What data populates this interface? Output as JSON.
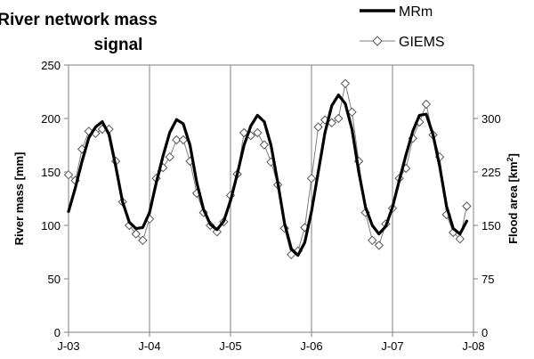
{
  "chart_data": {
    "type": "line",
    "title": "River network mass signal",
    "title_lines": [
      "River network mass",
      "signal"
    ],
    "xlabel": "",
    "ylabel": "River mass [mm]",
    "y2label": "Flood area [km",
    "y2label_sup": "2",
    "y2label_end": "]",
    "ylim": [
      0,
      250
    ],
    "y2lim": [
      0,
      375
    ],
    "xlim": [
      0,
      60
    ],
    "yticks": [
      0,
      50,
      100,
      150,
      200,
      250
    ],
    "y2ticks": [
      0,
      75,
      150,
      225,
      300
    ],
    "xticks": [
      {
        "x": 0,
        "label": "J-03"
      },
      {
        "x": 12,
        "label": "J-04"
      },
      {
        "x": 24,
        "label": "J-05"
      },
      {
        "x": 36,
        "label": "J-06"
      },
      {
        "x": 48,
        "label": "J-07"
      },
      {
        "x": 60,
        "label": "J-08"
      }
    ],
    "grid": {
      "vertical": true,
      "horizontal": false
    },
    "legend": "top-right",
    "series": [
      {
        "name": "MRm",
        "axis": "left",
        "color": "#000000",
        "style": "thick-line",
        "x": [
          0,
          1,
          2,
          3,
          4,
          5,
          6,
          7,
          8,
          9,
          10,
          11,
          12,
          13,
          14,
          15,
          16,
          17,
          18,
          19,
          20,
          21,
          22,
          23,
          24,
          25,
          26,
          27,
          28,
          29,
          30,
          31,
          32,
          33,
          34,
          35,
          36,
          37,
          38,
          39,
          40,
          41,
          42,
          43,
          44,
          45,
          46,
          47,
          48,
          49,
          50,
          51,
          52,
          53,
          54,
          55,
          56,
          57,
          58,
          59
        ],
        "values": [
          113,
          135,
          160,
          182,
          192,
          197,
          185,
          155,
          122,
          103,
          97,
          98,
          112,
          140,
          165,
          187,
          199,
          195,
          175,
          140,
          115,
          101,
          96,
          104,
          123,
          148,
          175,
          193,
          203,
          197,
          175,
          140,
          102,
          78,
          72,
          84,
          113,
          150,
          187,
          212,
          222,
          214,
          190,
          150,
          117,
          100,
          92,
          99,
          117,
          142,
          166,
          188,
          203,
          204,
          185,
          155,
          118,
          97,
          92,
          104
        ]
      },
      {
        "name": "GIEMS",
        "axis": "right",
        "color": "#7f7f7f",
        "style": "thin-line-diamond",
        "x": [
          0,
          1,
          2,
          3,
          4,
          5,
          6,
          7,
          8,
          9,
          10,
          11,
          12,
          13,
          14,
          15,
          16,
          17,
          18,
          19,
          20,
          21,
          22,
          23,
          24,
          25,
          26,
          27,
          28,
          29,
          30,
          31,
          32,
          33,
          34,
          35,
          36,
          37,
          38,
          39,
          40,
          41,
          42,
          43,
          44,
          45,
          46,
          47,
          48,
          49,
          50,
          51,
          52,
          53,
          54,
          55,
          56,
          57,
          58,
          59
        ],
        "values": [
          221,
          213,
          257,
          282,
          279,
          285,
          285,
          240,
          183,
          150,
          138,
          129,
          159,
          216,
          231,
          246,
          270,
          270,
          240,
          195,
          168,
          150,
          141,
          155,
          192,
          222,
          280,
          276,
          280,
          263,
          239,
          207,
          146,
          109,
          114,
          147,
          216,
          288,
          298,
          294,
          300,
          349,
          309,
          240,
          168,
          129,
          122,
          152,
          174,
          216,
          230,
          272,
          295,
          320,
          277,
          246,
          165,
          140,
          131,
          177
        ]
      }
    ]
  }
}
